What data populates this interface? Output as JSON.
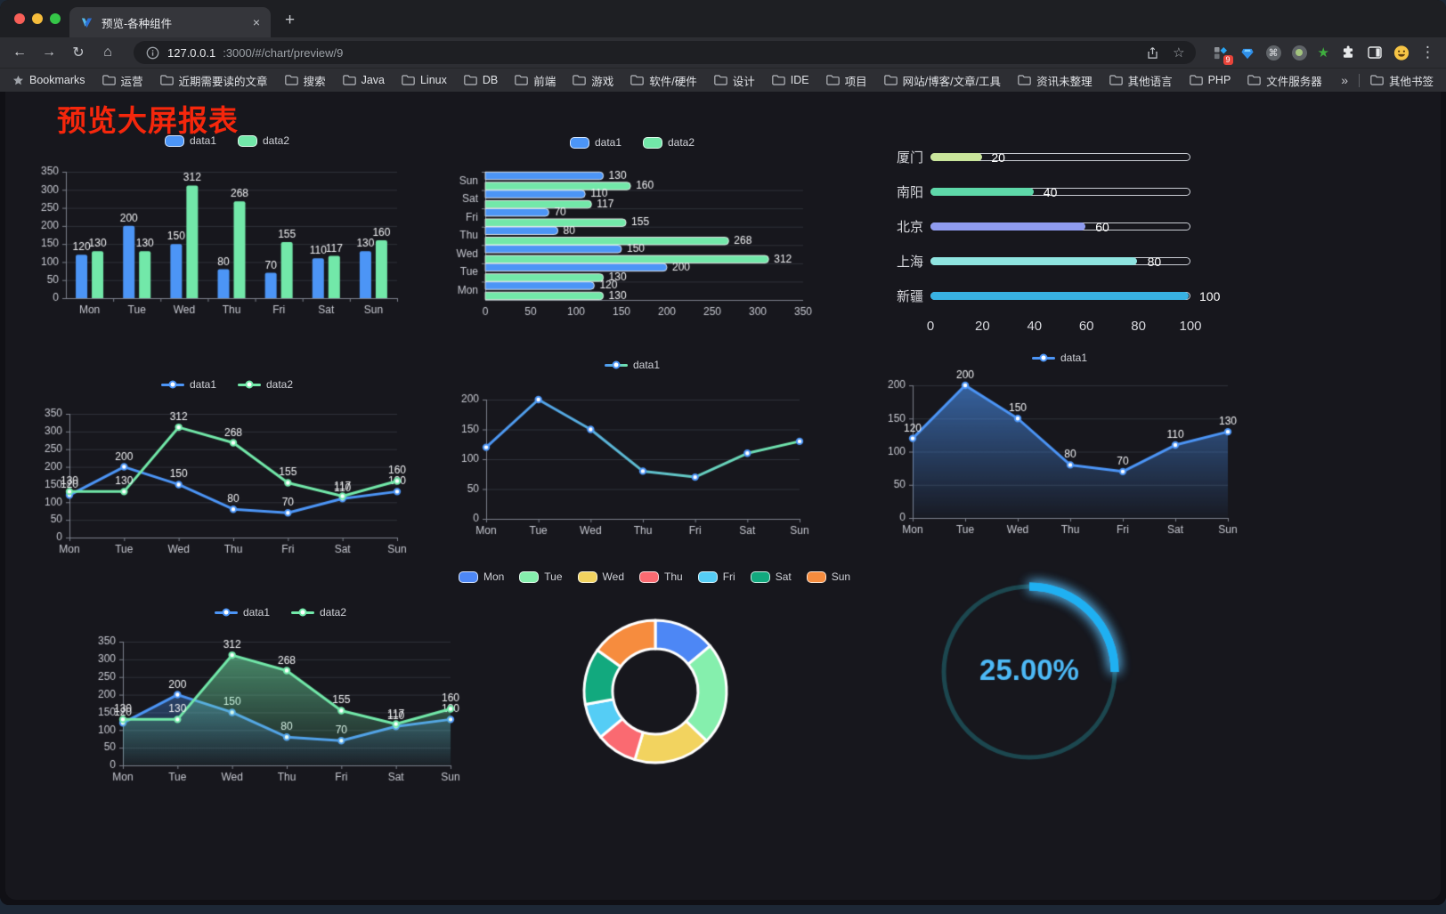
{
  "window": {
    "tab": {
      "title": "预览-各种组件",
      "close_glyph": "×",
      "new_tab_glyph": "+"
    },
    "nav": {
      "back": "←",
      "forward": "→",
      "reload": "↻",
      "home": "⌂"
    },
    "address": {
      "host": "127.0.0.1",
      "path": ":3000/#/chart/preview/9"
    },
    "icons": {
      "extension_badge": "9",
      "cmd_glyph": "⌘",
      "kebab_glyph": "⋮",
      "star_glyph": "☆",
      "green_star_glyph": "★"
    },
    "bookmarks_bar": {
      "star_label": "Bookmarks",
      "folders": [
        "运营",
        "近期需要读的文章",
        "搜索",
        "Java",
        "Linux",
        "DB",
        "前端",
        "游戏",
        "软件/硬件",
        "设计",
        "IDE",
        "项目",
        "网站/博客/文章/工具",
        "资讯未整理",
        "其他语言",
        "PHP",
        "文件服务器"
      ],
      "overflow": "»",
      "other": "其他书签"
    }
  },
  "page": {
    "title": "预览大屏报表",
    "title_color": "#f5270c",
    "background": "#17171d"
  },
  "chart_data": [
    {
      "id": "bar-grouped",
      "type": "bar",
      "categories": [
        "Mon",
        "Tue",
        "Wed",
        "Thu",
        "Fri",
        "Sat",
        "Sun"
      ],
      "series": [
        {
          "name": "data1",
          "color": "#4c95f6",
          "values": [
            120,
            200,
            150,
            80,
            70,
            110,
            130
          ]
        },
        {
          "name": "data2",
          "color": "#72e8a9",
          "values": [
            130,
            130,
            312,
            268,
            155,
            117,
            160
          ]
        }
      ],
      "ylim": [
        0,
        350
      ],
      "ystep": 50,
      "grid": true,
      "value_labels": true,
      "legend_position": "top"
    },
    {
      "id": "bar-horizontal",
      "type": "bar",
      "orientation": "horizontal",
      "categories": [
        "Mon",
        "Tue",
        "Wed",
        "Thu",
        "Fri",
        "Sat",
        "Sun"
      ],
      "series": [
        {
          "name": "data1",
          "color": "#4c95f6",
          "values": [
            120,
            200,
            150,
            80,
            70,
            110,
            130
          ]
        },
        {
          "name": "data2",
          "color": "#72e8a9",
          "values": [
            130,
            130,
            312,
            268,
            155,
            117,
            160
          ]
        }
      ],
      "xlim": [
        0,
        350
      ],
      "xstep": 50,
      "grid": true,
      "value_labels": true,
      "legend_position": "top"
    },
    {
      "id": "progress-bars",
      "type": "bar",
      "orientation": "horizontal-progress",
      "items": [
        {
          "label": "厦门",
          "value": 20,
          "color": "#c9e59b"
        },
        {
          "label": "南阳",
          "value": 40,
          "color": "#5ed8a9"
        },
        {
          "label": "北京",
          "value": 60,
          "color": "#8f9bef"
        },
        {
          "label": "上海",
          "value": 80,
          "color": "#8fe4e0"
        },
        {
          "label": "新疆",
          "value": 100,
          "color": "#38b2e3"
        }
      ],
      "max": 100,
      "axis_ticks": [
        0,
        20,
        40,
        60,
        80,
        100
      ]
    },
    {
      "id": "line-dual",
      "type": "line",
      "categories": [
        "Mon",
        "Tue",
        "Wed",
        "Thu",
        "Fri",
        "Sat",
        "Sun"
      ],
      "series": [
        {
          "name": "data1",
          "color": "#4c95f6",
          "values": [
            120,
            200,
            150,
            80,
            70,
            110,
            130
          ]
        },
        {
          "name": "data2",
          "color": "#72e8a9",
          "values": [
            130,
            130,
            312,
            268,
            155,
            117,
            160
          ]
        }
      ],
      "ylim": [
        0,
        350
      ],
      "ystep": 50,
      "grid": true,
      "value_labels": true,
      "legend_position": "top"
    },
    {
      "id": "line-gradient",
      "type": "line",
      "categories": [
        "Mon",
        "Tue",
        "Wed",
        "Thu",
        "Fri",
        "Sat",
        "Sun"
      ],
      "series": [
        {
          "name": "data1",
          "gradient": [
            "#4c95f6",
            "#72e8a9"
          ],
          "values": [
            120,
            200,
            150,
            80,
            70,
            110,
            130
          ]
        }
      ],
      "ylim": [
        0,
        200
      ],
      "ystep": 50,
      "grid": true,
      "value_labels": false,
      "shadow": true,
      "legend_position": "top"
    },
    {
      "id": "line-area",
      "type": "line",
      "categories": [
        "Mon",
        "Tue",
        "Wed",
        "Thu",
        "Fri",
        "Sat",
        "Sun"
      ],
      "series": [
        {
          "name": "data1",
          "color": "#4c95f6",
          "area": true,
          "values": [
            120,
            200,
            150,
            80,
            70,
            110,
            130
          ]
        }
      ],
      "ylim": [
        0,
        200
      ],
      "ystep": 50,
      "grid": true,
      "value_labels": true,
      "shadow": true,
      "legend_position": "top"
    },
    {
      "id": "line-area-dual",
      "type": "line",
      "categories": [
        "Mon",
        "Tue",
        "Wed",
        "Thu",
        "Fri",
        "Sat",
        "Sun"
      ],
      "series": [
        {
          "name": "data1",
          "color": "#4c95f6",
          "area": true,
          "values": [
            120,
            200,
            150,
            80,
            70,
            110,
            130
          ]
        },
        {
          "name": "data2",
          "color": "#72e8a9",
          "area": true,
          "values": [
            130,
            130,
            312,
            268,
            155,
            117,
            160
          ]
        }
      ],
      "ylim": [
        0,
        350
      ],
      "ystep": 50,
      "grid": true,
      "value_labels": true,
      "legend_position": "top"
    },
    {
      "id": "donut",
      "type": "pie",
      "items": [
        {
          "label": "Mon",
          "value": 120,
          "color": "#4d87f5"
        },
        {
          "label": "Tue",
          "value": 200,
          "color": "#85efad"
        },
        {
          "label": "Wed",
          "value": 150,
          "color": "#f2d35f"
        },
        {
          "label": "Thu",
          "value": 80,
          "color": "#fa6a71"
        },
        {
          "label": "Fri",
          "value": 70,
          "color": "#55cdf5"
        },
        {
          "label": "Sat",
          "value": 110,
          "color": "#12a97e"
        },
        {
          "label": "Sun",
          "value": 130,
          "color": "#f68c3e"
        }
      ],
      "inner_radius": 48,
      "outer_radius": 80,
      "legend_position": "top"
    },
    {
      "id": "gauge",
      "type": "gauge",
      "value": 25,
      "label": "25.00%",
      "progress_color": "#1fb0f2",
      "track_color": "#1c474f",
      "text_color": "#4db9f6"
    }
  ]
}
